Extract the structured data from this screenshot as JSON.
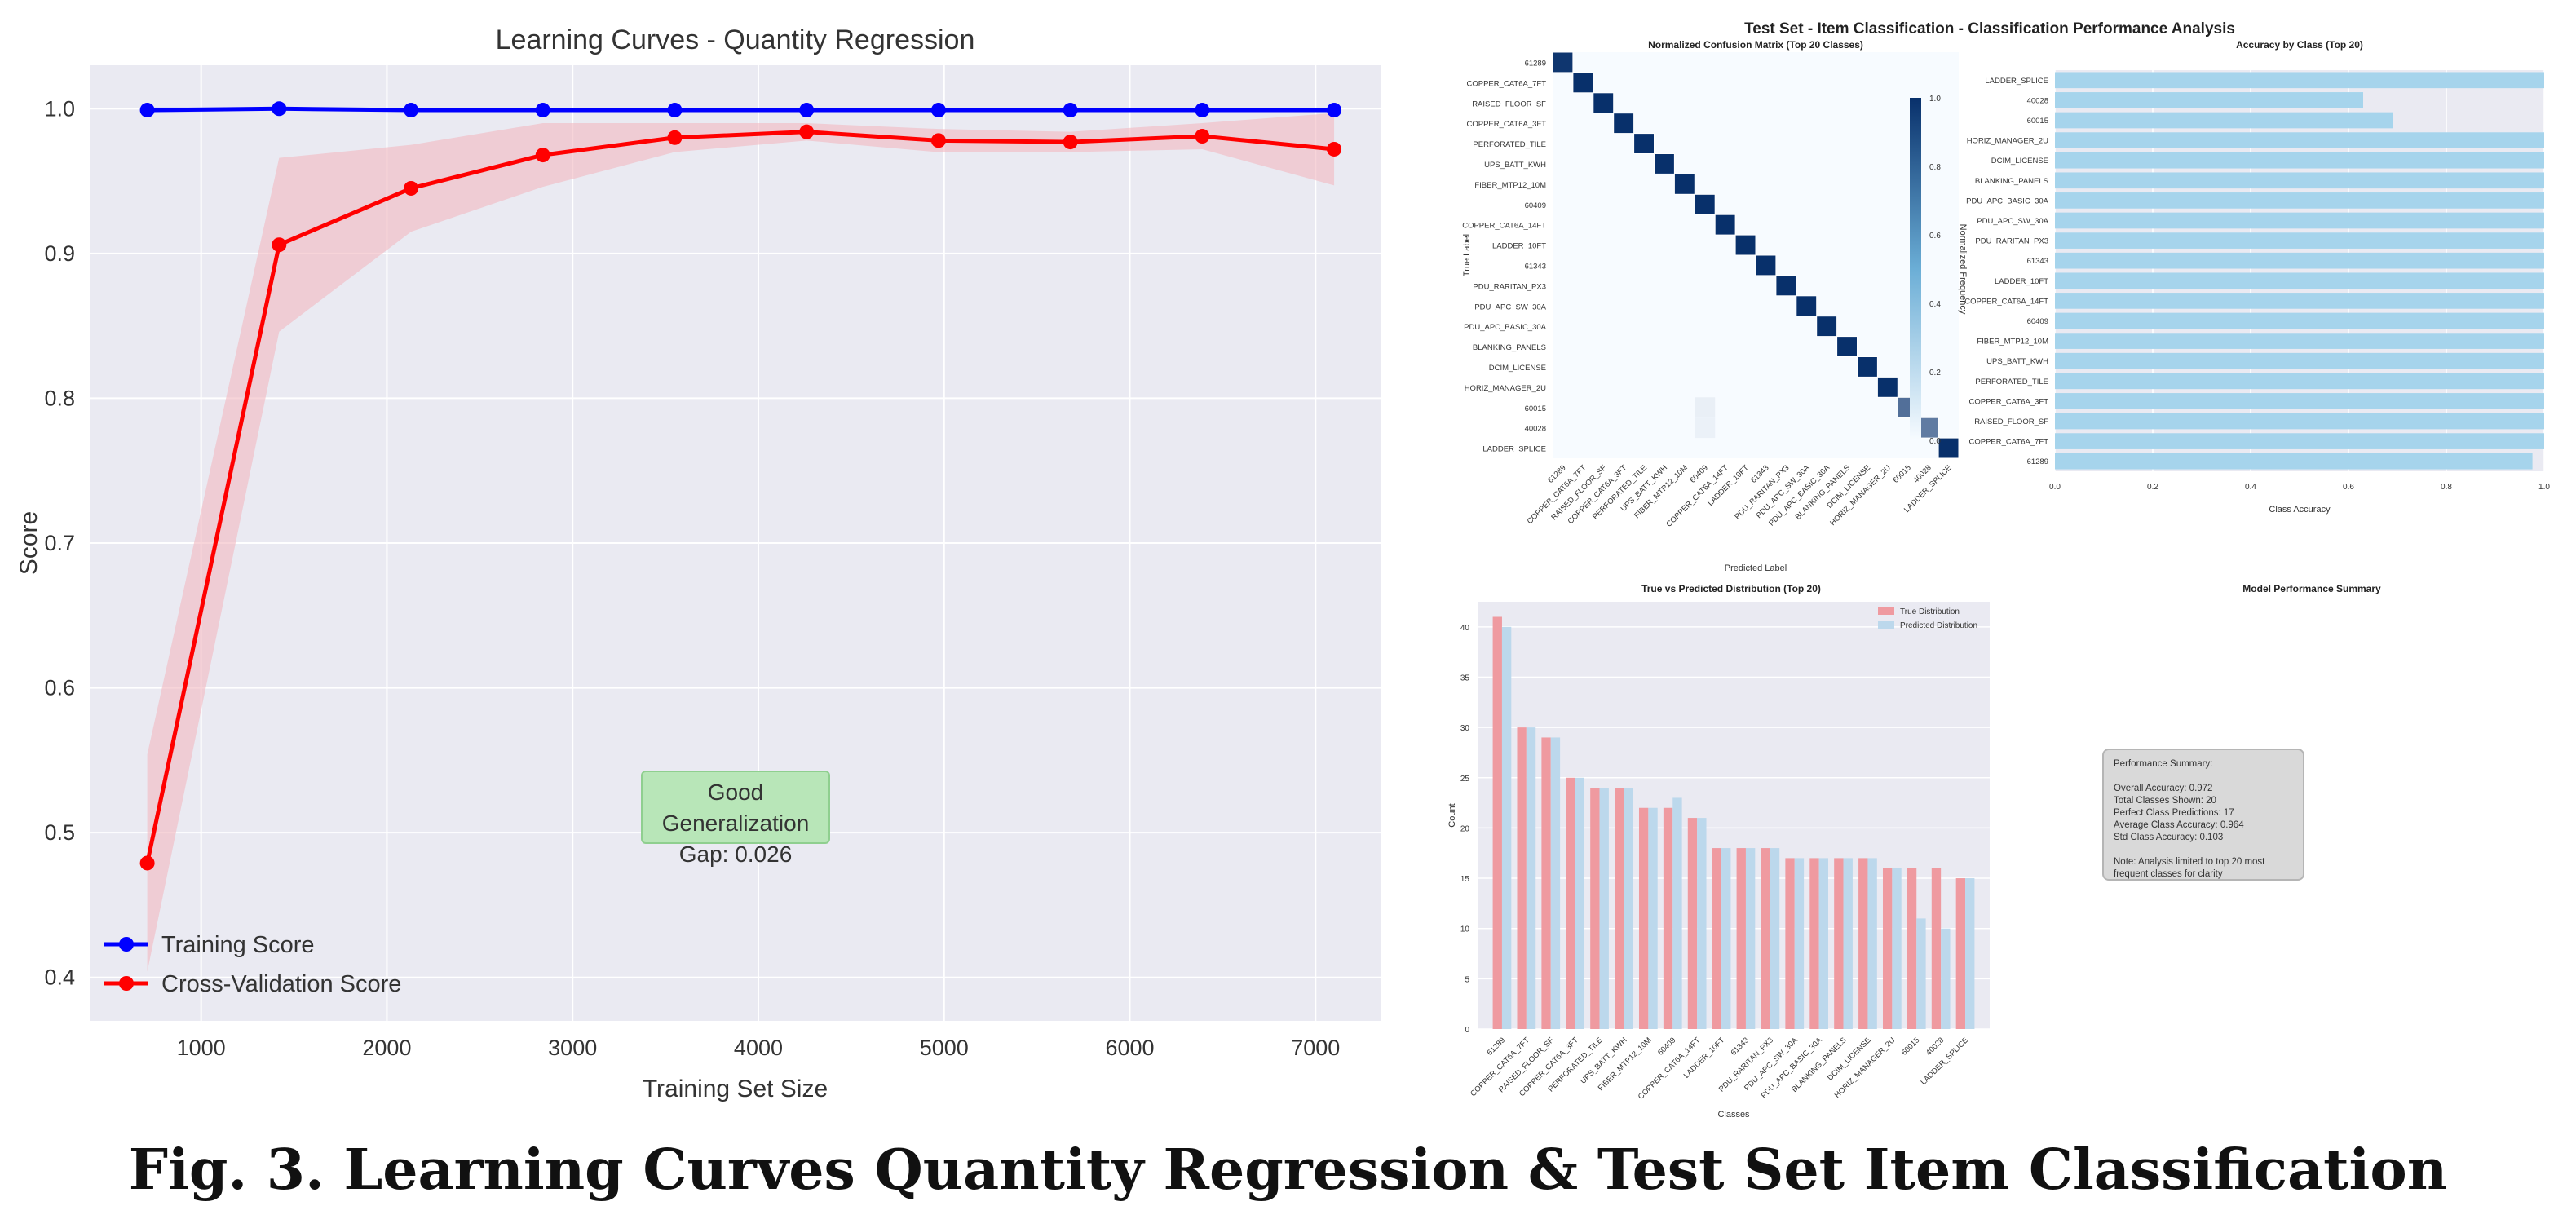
{
  "figure_caption": "Fig. 3.  Learning Curves Quantity Regression & Test Set Item Classification",
  "colors": {
    "training": "#0000ff",
    "cv": "#ff0000",
    "cv_band": "#f2b8c0",
    "panel_bg": "#eaeaf2",
    "heat_dark": "#08306b",
    "bar_blue": "#a6d4ec",
    "bar_red": "#ef9aa0",
    "bar_light": "#bcd8ec",
    "gen_box": "#b8e6b8"
  },
  "learning_curve_annotation": {
    "line1": "Good Generalization",
    "line2": "Gap: 0.026"
  },
  "summary_box": {
    "title": "Model Performance Summary",
    "lines": [
      "Performance Summary:",
      "",
      "Overall Accuracy: 0.972",
      "Total Classes Shown: 20",
      "Perfect Class Predictions: 17",
      "Average Class Accuracy: 0.964",
      "Std Class Accuracy: 0.103",
      "",
      "Note: Analysis limited to top 20 most",
      "frequent classes for clarity"
    ]
  },
  "suptitle": "Test Set - Item Classification - Classification Performance Analysis",
  "chart_data": [
    {
      "id": "learning_curve",
      "type": "line",
      "title": "Learning Curves - Quantity Regression",
      "xlabel": "Training Set Size",
      "ylabel": "Score",
      "xlim": [
        400,
        7350
      ],
      "ylim": [
        0.37,
        1.03
      ],
      "xticks": [
        1000,
        2000,
        3000,
        4000,
        5000,
        6000,
        7000
      ],
      "yticks": [
        0.4,
        0.5,
        0.6,
        0.7,
        0.8,
        0.9,
        1.0
      ],
      "legend_position": "lower-left",
      "grid": true,
      "x": [
        710,
        1420,
        2130,
        2840,
        3550,
        4260,
        4970,
        5680,
        6390,
        7100
      ],
      "series": [
        {
          "name": "Training Score",
          "values": [
            0.999,
            1.0,
            0.999,
            0.999,
            0.999,
            0.999,
            0.999,
            0.999,
            0.999,
            0.999
          ],
          "std": [
            0.002,
            0.001,
            0.001,
            0.001,
            0.001,
            0.001,
            0.001,
            0.001,
            0.001,
            0.001
          ]
        },
        {
          "name": "Cross-Validation Score",
          "values": [
            0.479,
            0.906,
            0.945,
            0.968,
            0.98,
            0.984,
            0.978,
            0.977,
            0.981,
            0.972
          ],
          "std": [
            0.075,
            0.06,
            0.03,
            0.022,
            0.01,
            0.006,
            0.008,
            0.007,
            0.009,
            0.025
          ]
        }
      ]
    },
    {
      "id": "confusion_matrix",
      "type": "heatmap",
      "title": "Normalized Confusion Matrix (Top 20 Classes)",
      "xlabel": "Predicted Label",
      "ylabel": "True Label",
      "colorbar_label": "Normalized Frequency",
      "colorbar_ticks": [
        0.0,
        0.2,
        0.4,
        0.6,
        0.8,
        1.0
      ],
      "labels": [
        "61289",
        "COPPER_CAT6A_7FT",
        "RAISED_FLOOR_SF",
        "COPPER_CAT6A_3FT",
        "PERFORATED_TILE",
        "UPS_BATT_KWH",
        "FIBER_MTP12_10M",
        "60409",
        "COPPER_CAT6A_14FT",
        "LADDER_10FT",
        "61343",
        "PDU_RARITAN_PX3",
        "PDU_APC_SW_30A",
        "PDU_APC_BASIC_30A",
        "BLANKING_PANELS",
        "DCIM_LICENSE",
        "HORIZ_MANAGER_2U",
        "60015",
        "40028",
        "LADDER_SPLICE"
      ],
      "diagonal": [
        0.97,
        1,
        1,
        1,
        1,
        1,
        1,
        1,
        1,
        1,
        1,
        1,
        1,
        1,
        1,
        1,
        1,
        0.69,
        0.63,
        1
      ],
      "off_diagonal": [
        {
          "row": 17,
          "col": 7,
          "value": 0.06
        },
        {
          "row": 18,
          "col": 7,
          "value": 0.05
        }
      ]
    },
    {
      "id": "accuracy_by_class",
      "type": "bar",
      "orientation": "horizontal",
      "title": "Accuracy by Class (Top 20)",
      "xlabel": "Class Accuracy",
      "xlim": [
        0,
        1.0
      ],
      "xticks": [
        0.0,
        0.2,
        0.4,
        0.6,
        0.8,
        1.0
      ],
      "categories": [
        "LADDER_SPLICE",
        "40028",
        "60015",
        "HORIZ_MANAGER_2U",
        "DCIM_LICENSE",
        "BLANKING_PANELS",
        "PDU_APC_BASIC_30A",
        "PDU_APC_SW_30A",
        "PDU_RARITAN_PX3",
        "61343",
        "LADDER_10FT",
        "COPPER_CAT6A_14FT",
        "60409",
        "FIBER_MTP12_10M",
        "UPS_BATT_KWH",
        "PERFORATED_TILE",
        "COPPER_CAT6A_3FT",
        "RAISED_FLOOR_SF",
        "COPPER_CAT6A_7FT",
        "61289"
      ],
      "values": [
        1.0,
        0.63,
        0.69,
        1.0,
        1.0,
        1.0,
        1.0,
        1.0,
        1.0,
        1.0,
        1.0,
        1.0,
        1.0,
        1.0,
        1.0,
        1.0,
        1.0,
        1.0,
        1.0,
        0.976
      ]
    },
    {
      "id": "distribution",
      "type": "bar",
      "title": "True vs Predicted Distribution (Top 20)",
      "xlabel": "Classes",
      "ylabel": "Count",
      "ylim": [
        0,
        42.5
      ],
      "yticks": [
        0,
        5,
        10,
        15,
        20,
        25,
        30,
        35,
        40
      ],
      "legend_position": "top-right",
      "categories": [
        "61289",
        "COPPER_CAT6A_7FT",
        "RAISED_FLOOR_SF",
        "COPPER_CAT6A_3FT",
        "PERFORATED_TILE",
        "UPS_BATT_KWH",
        "FIBER_MTP12_10M",
        "60409",
        "COPPER_CAT6A_14FT",
        "LADDER_10FT",
        "61343",
        "PDU_RARITAN_PX3",
        "PDU_APC_SW_30A",
        "PDU_APC_BASIC_30A",
        "BLANKING_PANELS",
        "DCIM_LICENSE",
        "HORIZ_MANAGER_2U",
        "60015",
        "40028",
        "LADDER_SPLICE"
      ],
      "series": [
        {
          "name": "True Distribution",
          "values": [
            41,
            30,
            29,
            25,
            24,
            24,
            22,
            22,
            21,
            18,
            18,
            18,
            17,
            17,
            17,
            17,
            16,
            16,
            16,
            15
          ]
        },
        {
          "name": "Predicted Distribution",
          "values": [
            40,
            30,
            29,
            25,
            24,
            24,
            22,
            23,
            21,
            18,
            18,
            18,
            17,
            17,
            17,
            17,
            16,
            11,
            10,
            15
          ]
        }
      ]
    }
  ]
}
